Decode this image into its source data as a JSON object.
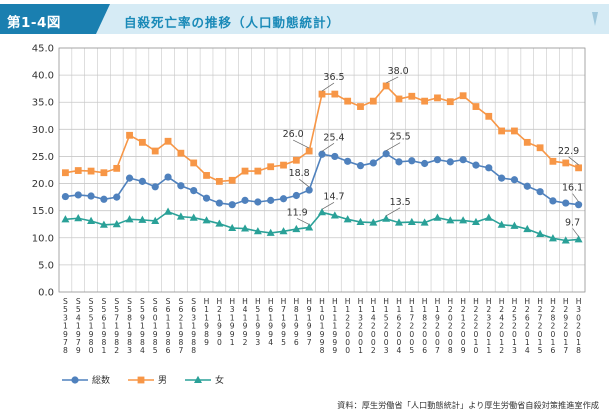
{
  "figure": {
    "number": "第1-4図",
    "title": "自殺死亡率の推移（人口動態統計）",
    "source": "資料：厚生労働省「人口動態統計」より厚生労働省自殺対策推進室作成",
    "colors": {
      "header_dark": "#1a7fb0",
      "header_light": "#d6ebf5",
      "title_text": "#1a8ab8",
      "total": "#4f81bd",
      "male": "#f79646",
      "female": "#2aa198",
      "grid": "#c8c8c8"
    }
  },
  "chart_data": {
    "type": "line",
    "categories": [
      "S53\n1978",
      "S54\n1979",
      "S55\n1980",
      "S56\n1981",
      "S57\n1982",
      "S58\n1983",
      "S59\n1984",
      "S60\n1985",
      "S61\n1986",
      "S62\n1987",
      "S63\n1988",
      "H1\n1989",
      "H2\n1990",
      "H3\n1991",
      "H4\n1992",
      "H5\n1993",
      "H6\n1994",
      "H7\n1995",
      "H8\n1996",
      "H9\n1997",
      "H10\n1998",
      "H11\n1999",
      "H12\n2000",
      "H13\n2001",
      "H14\n2002",
      "H15\n2003",
      "H16\n2004",
      "H17\n2005",
      "H18\n2006",
      "H19\n2007",
      "H20\n2008",
      "H21\n2009",
      "H22\n2010",
      "H23\n2011",
      "H24\n2012",
      "H25\n2013",
      "H26\n2014",
      "H27\n2015",
      "H28\n2016",
      "H29\n2017",
      "H30\n2018"
    ],
    "series": [
      {
        "name": "総数",
        "color": "#4f81bd",
        "marker": "circle",
        "values": [
          17.6,
          17.9,
          17.7,
          17.1,
          17.5,
          21.0,
          20.4,
          19.4,
          21.2,
          19.6,
          18.7,
          17.3,
          16.4,
          16.1,
          16.9,
          16.6,
          16.9,
          17.2,
          17.8,
          18.8,
          25.4,
          25.0,
          24.1,
          23.3,
          23.8,
          25.5,
          24.0,
          24.2,
          23.7,
          24.4,
          24.0,
          24.4,
          23.4,
          22.9,
          21.0,
          20.7,
          19.5,
          18.5,
          16.8,
          16.4,
          16.1
        ]
      },
      {
        "name": "男",
        "color": "#f79646",
        "marker": "square",
        "values": [
          22.0,
          22.4,
          22.3,
          22.0,
          22.8,
          28.9,
          27.6,
          26.0,
          27.8,
          25.6,
          23.8,
          21.5,
          20.4,
          20.6,
          22.3,
          22.3,
          23.1,
          23.4,
          24.3,
          26.0,
          36.5,
          36.5,
          35.2,
          34.2,
          35.2,
          38.0,
          35.6,
          36.1,
          35.2,
          35.8,
          35.1,
          36.2,
          34.2,
          32.4,
          29.7,
          29.7,
          27.6,
          26.6,
          24.1,
          23.8,
          22.9
        ]
      },
      {
        "name": "女",
        "color": "#2aa198",
        "marker": "triangle",
        "values": [
          13.4,
          13.6,
          13.1,
          12.4,
          12.5,
          13.4,
          13.3,
          13.1,
          14.8,
          13.9,
          13.7,
          13.2,
          12.6,
          11.8,
          11.7,
          11.2,
          10.9,
          11.2,
          11.6,
          11.9,
          14.7,
          14.1,
          13.4,
          12.9,
          12.8,
          13.5,
          12.8,
          12.9,
          12.8,
          13.7,
          13.2,
          13.2,
          12.9,
          13.7,
          12.4,
          12.2,
          11.6,
          10.7,
          9.9,
          9.5,
          9.7
        ]
      }
    ],
    "ylim": [
      0,
      45
    ],
    "yticks": [
      0.0,
      5.0,
      10.0,
      15.0,
      20.0,
      25.0,
      30.0,
      35.0,
      40.0,
      45.0
    ],
    "grid": true,
    "legend": "bottom-left",
    "annotations": [
      {
        "series": "男",
        "category": "H9\n1997",
        "text": "26.0"
      },
      {
        "series": "男",
        "category": "H10\n1998",
        "text": "36.5"
      },
      {
        "series": "男",
        "category": "H15\n2003",
        "text": "38.0"
      },
      {
        "series": "男",
        "category": "H30\n2018",
        "text": "22.9"
      },
      {
        "series": "総数",
        "category": "H9\n1997",
        "text": "18.8"
      },
      {
        "series": "総数",
        "category": "H10\n1998",
        "text": "25.4"
      },
      {
        "series": "総数",
        "category": "H15\n2003",
        "text": "25.5"
      },
      {
        "series": "総数",
        "category": "H30\n2018",
        "text": "16.1"
      },
      {
        "series": "女",
        "category": "H9\n1997",
        "text": "11.9"
      },
      {
        "series": "女",
        "category": "H10\n1998",
        "text": "14.7"
      },
      {
        "series": "女",
        "category": "H15\n2003",
        "text": "13.5"
      },
      {
        "series": "女",
        "category": "H30\n2018",
        "text": "9.7"
      }
    ]
  }
}
